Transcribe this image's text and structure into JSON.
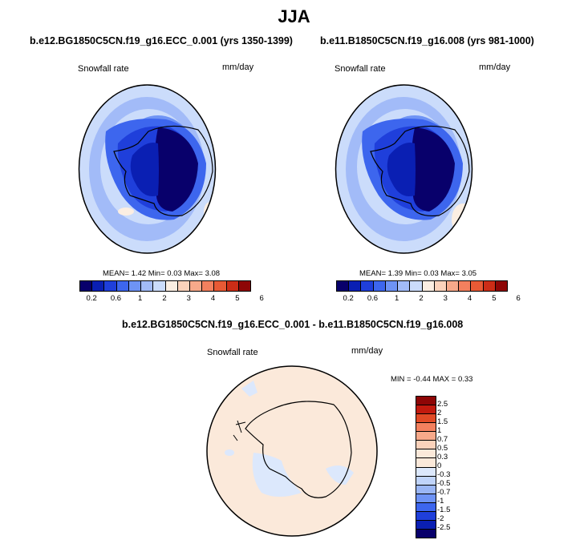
{
  "title": "JJA",
  "panels": [
    {
      "title": "b.e12.BG1850C5CN.f19_g16.ECC_0.001 (yrs 1350-1399)",
      "variable": "Snowfall rate",
      "units": "mm/day",
      "stats": {
        "mean_label": "MEAN=",
        "mean": "1.42",
        "min_label": "Min=",
        "min": "0.03",
        "max_label": "Max=",
        "max": "3.08"
      }
    },
    {
      "title": "b.e11.B1850C5CN.f19_g16.008 (yrs 981-1000)",
      "variable": "Snowfall rate",
      "units": "mm/day",
      "stats": {
        "mean_label": "MEAN=",
        "mean": "1.39",
        "min_label": "Min=",
        "min": "0.03",
        "max_label": "Max=",
        "max": "3.05"
      }
    }
  ],
  "diff_panel": {
    "title": "b.e12.BG1850C5CN.f19_g16.ECC_0.001 - b.e11.B1850C5CN.f19_g16.008",
    "variable": "Snowfall rate",
    "units": "mm/day",
    "stats": {
      "min_label": "MIN =",
      "min": "-0.44",
      "max_label": "MAX =",
      "max": "0.33"
    }
  },
  "colorbar_main": {
    "colors": [
      "#08006b",
      "#0a1fb3",
      "#1f3fdb",
      "#3d66ee",
      "#6e93f5",
      "#a2bbf8",
      "#cbdcfb",
      "#fbeee2",
      "#fbd2bb",
      "#f7a98a",
      "#f3805e",
      "#e85a35",
      "#cc2d17",
      "#8e0606"
    ],
    "labels": [
      "0.2",
      "0.6",
      "1",
      "2",
      "3",
      "4",
      "5",
      "6"
    ]
  },
  "colorbar_diff": {
    "colors": [
      "#8e0606",
      "#c21a0e",
      "#e14a26",
      "#f3805e",
      "#f7a98a",
      "#fbd2bb",
      "#fbe9da",
      "#dce8fc",
      "#c0d4fa",
      "#9ab6f5",
      "#6e93f5",
      "#3d66ee",
      "#1f3fdb",
      "#0a1fb3",
      "#08006b"
    ],
    "labels": [
      "2.5",
      "2",
      "1.5",
      "1",
      "0.7",
      "0.5",
      "0.3",
      "0",
      "-0.3",
      "-0.5",
      "-0.7",
      "-1",
      "-1.5",
      "-2",
      "-2.5"
    ]
  }
}
